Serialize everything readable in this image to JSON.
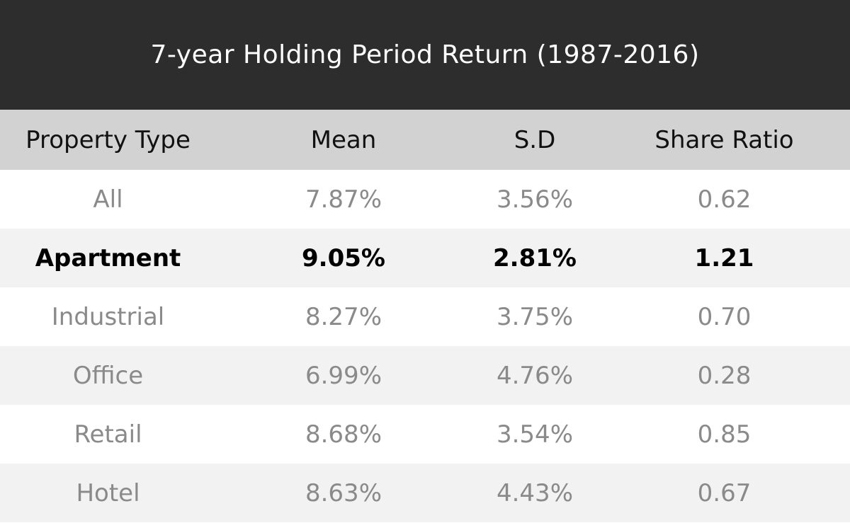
{
  "chart_data": {
    "type": "table",
    "title": "7-year Holding Period Return (1987-2016)",
    "columns": [
      "Property Type",
      "Mean",
      "S.D",
      "Share Ratio"
    ],
    "rows": [
      {
        "property_type": "All",
        "mean": "7.87%",
        "sd": "3.56%",
        "share_ratio": "0.62",
        "highlight": false
      },
      {
        "property_type": "Apartment",
        "mean": "9.05%",
        "sd": "2.81%",
        "share_ratio": "1.21",
        "highlight": true
      },
      {
        "property_type": "Industrial",
        "mean": "8.27%",
        "sd": "3.75%",
        "share_ratio": "0.70",
        "highlight": false
      },
      {
        "property_type": "Office",
        "mean": "6.99%",
        "sd": "4.76%",
        "share_ratio": "0.28",
        "highlight": false
      },
      {
        "property_type": "Retail",
        "mean": "8.68%",
        "sd": "3.54%",
        "share_ratio": "0.85",
        "highlight": false
      },
      {
        "property_type": "Hotel",
        "mean": "8.63%",
        "sd": "4.43%",
        "share_ratio": "0.67",
        "highlight": false
      }
    ]
  },
  "colors": {
    "title_background": "#2d2d2d",
    "header_background": "#d2d2d2",
    "row_alt_background": "#f2f2f2",
    "text_muted": "#8a8a8a",
    "text_highlight": "#000000"
  }
}
